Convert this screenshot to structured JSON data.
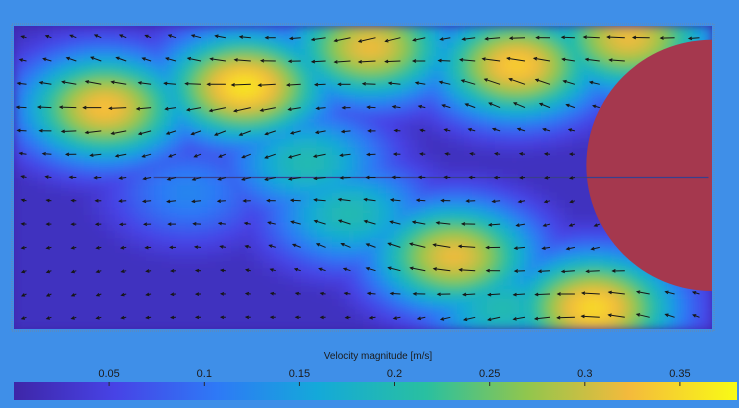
{
  "chart_data": {
    "type": "heatmap",
    "subtype": "velocity-vector-field",
    "title": "",
    "xlabel": "",
    "ylabel": "",
    "colorbar": {
      "label": "Velocity magnitude [m/s]",
      "ticks": [
        0.05,
        0.1,
        0.15,
        0.2,
        0.25,
        0.3,
        0.35
      ],
      "range": [
        0,
        0.38
      ],
      "colormap": "parula",
      "placement": "bottom"
    },
    "grid_cols": 28,
    "grid_rows": 13,
    "hotspots": [
      {
        "x": 0.33,
        "y": 0.2,
        "magnitude": 0.36
      },
      {
        "x": 0.13,
        "y": 0.27,
        "magnitude": 0.33
      },
      {
        "x": 0.51,
        "y": 0.07,
        "magnitude": 0.32
      },
      {
        "x": 0.72,
        "y": 0.13,
        "magnitude": 0.34
      },
      {
        "x": 0.88,
        "y": 0.04,
        "magnitude": 0.32
      },
      {
        "x": 0.42,
        "y": 0.45,
        "magnitude": 0.2
      },
      {
        "x": 0.48,
        "y": 0.62,
        "magnitude": 0.2
      },
      {
        "x": 0.63,
        "y": 0.76,
        "magnitude": 0.32
      },
      {
        "x": 0.83,
        "y": 0.93,
        "magnitude": 0.35
      },
      {
        "x": 0.7,
        "y": 0.93,
        "magnitude": 0.2
      },
      {
        "x": 0.25,
        "y": 0.55,
        "magnitude": 0.12
      }
    ],
    "obstacle": {
      "x": 1.0,
      "y": 0.46,
      "radius": 0.2,
      "color": "#a5384e"
    },
    "centerline_y": 0.5,
    "colors": {
      "background": "#3f8fe8",
      "field_low": "#3e26a8",
      "obstacle": "#a5384e"
    }
  }
}
